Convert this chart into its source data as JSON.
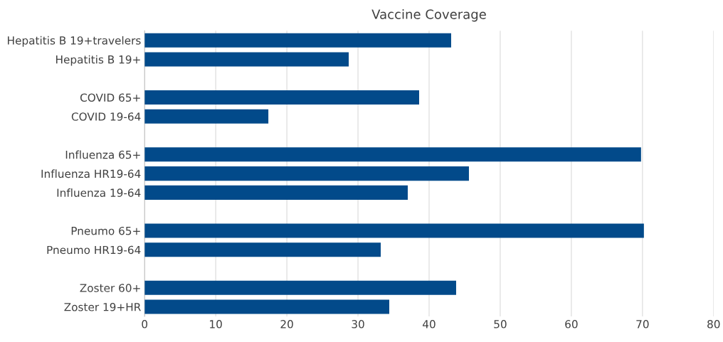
{
  "chart_data": {
    "type": "bar",
    "orientation": "horizontal",
    "title": "Vaccine Coverage",
    "categories": [
      "Hepatitis B 19+travelers",
      "Hepatitis B 19+",
      null,
      "COVID 65+",
      "COVID 19-64",
      null,
      "Influenza 65+",
      "Influenza HR19-64",
      "Influenza 19-64",
      null,
      "Pneumo 65+",
      "Pneumo HR19-64",
      null,
      "Zoster 60+",
      "Zoster 19+HR"
    ],
    "values": [
      43.1,
      28.7,
      null,
      38.6,
      17.4,
      null,
      69.8,
      45.6,
      37.0,
      null,
      70.2,
      33.2,
      null,
      43.8,
      34.4
    ],
    "color": "#024a8a",
    "xlim": [
      0,
      80
    ],
    "xticks": [
      0,
      10,
      20,
      30,
      40,
      50,
      60,
      70,
      80
    ],
    "grid": "x",
    "legend": false
  }
}
